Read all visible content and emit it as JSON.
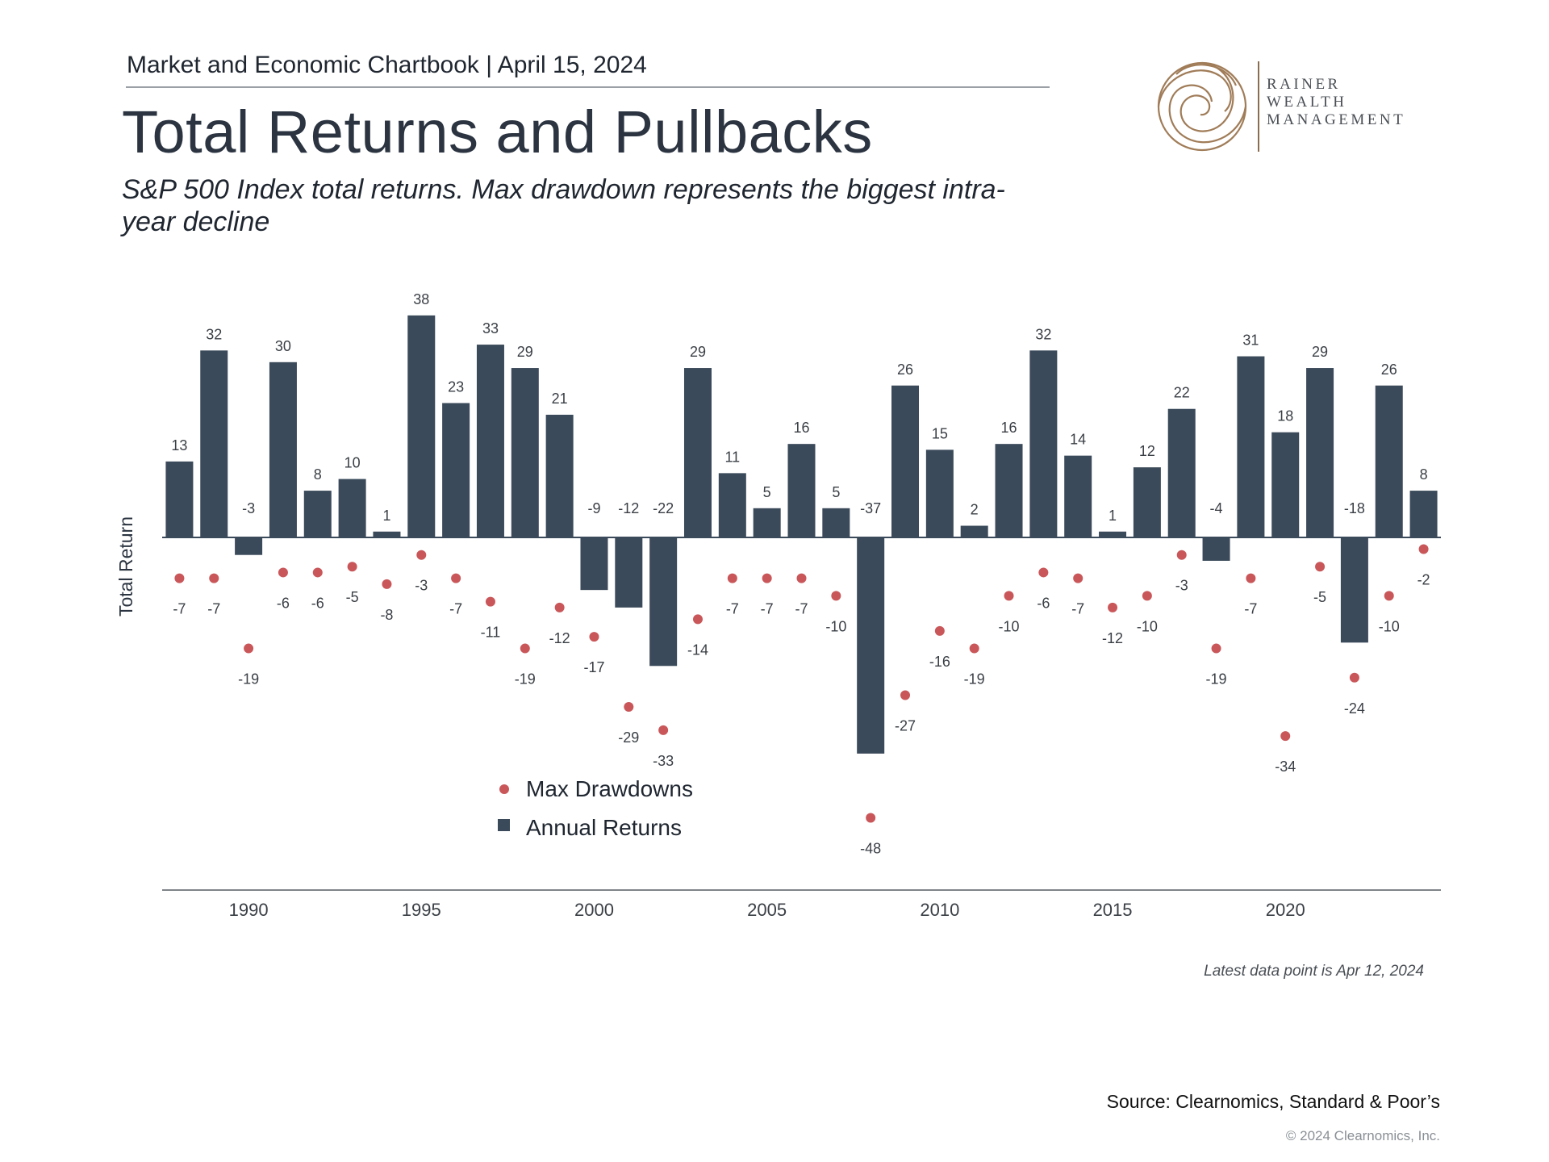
{
  "header": {
    "chartbook_line": "Market and Economic Chartbook | April 15, 2024",
    "title": "Total Returns and Pullbacks",
    "subtitle": "S&P 500 Index total returns. Max drawdown represents the biggest intra-year decline"
  },
  "logo": {
    "line1": "RAINER",
    "line2": "WEALTH",
    "line3": "MANAGEMENT",
    "color": "#a07c58"
  },
  "footer": {
    "note": "Latest data point is Apr 12, 2024",
    "source": "Source: Clearnomics, Standard & Poor’s",
    "copyright": "© 2024 Clearnomics, Inc."
  },
  "chart_data": {
    "type": "bar",
    "ylabel": "Total Return",
    "xlabel": "",
    "x": [
      1988,
      1989,
      1990,
      1991,
      1992,
      1993,
      1994,
      1995,
      1996,
      1997,
      1998,
      1999,
      2000,
      2001,
      2002,
      2003,
      2004,
      2005,
      2006,
      2007,
      2008,
      2009,
      2010,
      2011,
      2012,
      2013,
      2014,
      2015,
      2016,
      2017,
      2018,
      2019,
      2020,
      2021,
      2022,
      2023,
      2024
    ],
    "x_ticks": [
      1990,
      1995,
      2000,
      2005,
      2010,
      2015,
      2020
    ],
    "series": [
      {
        "name": "Annual Returns",
        "type": "bar",
        "color": "#3b4a5a",
        "values": [
          13,
          32,
          -3,
          30,
          8,
          10,
          1,
          38,
          23,
          33,
          29,
          21,
          -9,
          -12,
          -22,
          29,
          11,
          5,
          16,
          5,
          -37,
          26,
          15,
          2,
          16,
          32,
          14,
          1,
          12,
          22,
          -4,
          31,
          18,
          29,
          -18,
          26,
          8
        ]
      },
      {
        "name": "Max Drawdowns",
        "type": "scatter",
        "color": "#c9575a",
        "values": [
          -7,
          -7,
          -19,
          -6,
          -6,
          -5,
          -8,
          -3,
          -7,
          -11,
          -19,
          -12,
          -17,
          -29,
          -33,
          -14,
          -7,
          -7,
          -7,
          -10,
          -48,
          -27,
          -16,
          -19,
          -10,
          -6,
          -7,
          -12,
          -10,
          -3,
          -19,
          -7,
          -34,
          -5,
          -24,
          -10,
          -2
        ]
      }
    ],
    "ylim": [
      -60,
      42
    ],
    "grid": false,
    "legend_position": "bottom-left"
  }
}
